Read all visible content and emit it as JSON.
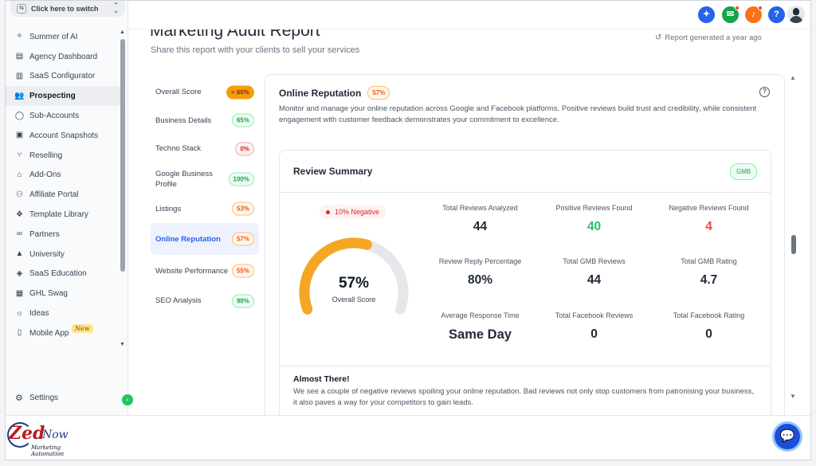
{
  "switcher": {
    "label": "Click here to switch"
  },
  "sidebar": {
    "items": [
      {
        "label": "Summer of AI",
        "icon": "sparkle-icon"
      },
      {
        "label": "Agency Dashboard",
        "icon": "dashboard-icon"
      },
      {
        "label": "SaaS Configurator",
        "icon": "chart-icon"
      },
      {
        "label": "Prospecting",
        "icon": "users-icon"
      },
      {
        "label": "Sub-Accounts",
        "icon": "user-icon"
      },
      {
        "label": "Account Snapshots",
        "icon": "snapshot-icon"
      },
      {
        "label": "Reselling",
        "icon": "reselling-icon"
      },
      {
        "label": "Add-Ons",
        "icon": "bag-icon"
      },
      {
        "label": "Affiliate Portal",
        "icon": "affiliate-icon"
      },
      {
        "label": "Template Library",
        "icon": "template-icon"
      },
      {
        "label": "Partners",
        "icon": "handshake-icon"
      },
      {
        "label": "University",
        "icon": "graduation-icon"
      },
      {
        "label": "SaaS Education",
        "icon": "education-icon"
      },
      {
        "label": "GHL Swag",
        "icon": "swag-icon"
      },
      {
        "label": "Ideas",
        "icon": "bulb-icon"
      },
      {
        "label": "Mobile App",
        "icon": "mobile-icon",
        "badge": "New"
      }
    ],
    "active_index": 3,
    "settings_label": "Settings"
  },
  "page": {
    "title": "Marketing Audit Report",
    "subtitle": "Share this report with your clients to sell your services",
    "generated": "Report generated a year ago"
  },
  "sections": [
    {
      "label": "Overall Score",
      "score": "≈ 60%",
      "tone": "solid"
    },
    {
      "label": "Business Details",
      "score": "65%",
      "tone": "green"
    },
    {
      "label": "Techno Stack",
      "score": "0%",
      "tone": "red"
    },
    {
      "label": "Google Business Profile",
      "score": "100%",
      "tone": "green"
    },
    {
      "label": "Listings",
      "score": "53%",
      "tone": "orange"
    },
    {
      "label": "Online Reputation",
      "score": "57%",
      "tone": "orange"
    },
    {
      "label": "Website Performance",
      "score": "55%",
      "tone": "orange"
    },
    {
      "label": "SEO Analysis",
      "score": "90%",
      "tone": "green"
    }
  ],
  "active_section": 5,
  "card": {
    "title": "Online Reputation",
    "score": "57%",
    "description": "Monitor and manage your online reputation across Google and Facebook platforms. Positive reviews build trust and credibility, while consistent engagement with customer feedback demonstrates your commitment to excellence."
  },
  "summary": {
    "title": "Review Summary",
    "chip": "GMB",
    "negative_badge": "10% Negative",
    "gauge_value": "57%",
    "gauge_fraction": 0.57,
    "gauge_label": "Overall Score",
    "metrics": [
      {
        "label": "Total Reviews Analyzed",
        "value": "44",
        "tone": ""
      },
      {
        "label": "Positive Reviews Found",
        "value": "40",
        "tone": "green"
      },
      {
        "label": "Negative Reviews Found",
        "value": "4",
        "tone": "red"
      },
      {
        "label": "Review Reply Percentage",
        "value": "80%",
        "tone": ""
      },
      {
        "label": "Total GMB Reviews",
        "value": "44",
        "tone": ""
      },
      {
        "label": "Total GMB Rating",
        "value": "4.7",
        "tone": ""
      },
      {
        "label": "Average Response Time",
        "value": "Same Day",
        "tone": "big"
      },
      {
        "label": "Total Facebook Reviews",
        "value": "0",
        "tone": ""
      },
      {
        "label": "Total Facebook Rating",
        "value": "0",
        "tone": ""
      }
    ],
    "almost_title": "Almost There!",
    "almost_text": "We see a couple of negative reviews spoiling your online reputation. Bad reviews not only stop customers from patronising your business, it also paves a way for your competitors to gain leads."
  },
  "colors": {
    "accent": "#2563eb",
    "gauge": "#f5a623",
    "gauge_track": "#e5e7eb",
    "positive": "#22c55e",
    "negative": "#ef4444"
  },
  "brand": {
    "logo_text_1": "Zed",
    "logo_text_2": "Now",
    "logo_tagline": "Marketing Automation"
  }
}
